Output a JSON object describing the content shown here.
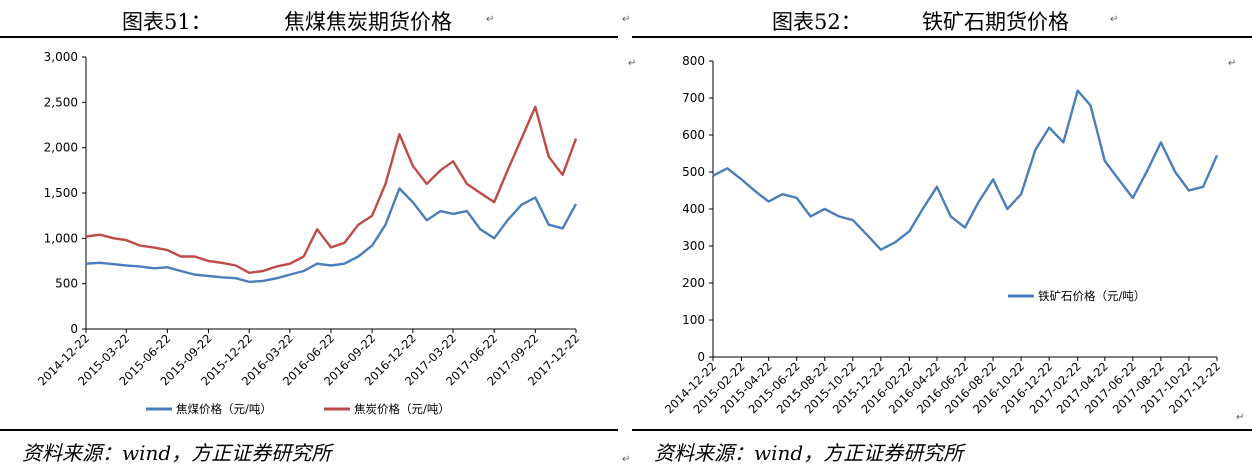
{
  "charts": [
    {
      "fig_no": "图表51：",
      "title": "焦煤焦炭期货价格",
      "source": "资料来源：wind，方正证券研究所",
      "mark": "↵"
    },
    {
      "fig_no": "图表52：",
      "title": "铁矿石期货价格",
      "source": "资料来源：wind，方正证券研究所",
      "mark": "↵"
    }
  ],
  "chart_data": [
    {
      "type": "line",
      "title": "焦煤焦炭期货价格",
      "x_tick_labels": [
        "2014-12-22",
        "2015-03-22",
        "2015-06-22",
        "2015-09-22",
        "2015-12-22",
        "2016-03-22",
        "2016-06-22",
        "2016-09-22",
        "2016-12-22",
        "2017-03-22",
        "2017-06-22",
        "2017-09-22",
        "2017-12-22"
      ],
      "x_range": [
        "2014-12-22",
        "2017-12-22"
      ],
      "y_ticks": [
        0,
        500,
        1000,
        1500,
        2000,
        2500,
        3000
      ],
      "y_tick_labels": [
        "0",
        "500",
        "1,000",
        "1,500",
        "2,000",
        "2,500",
        "3,000"
      ],
      "ylim": [
        0,
        3000
      ],
      "legend_position": "bottom",
      "series": [
        {
          "name": "焦煤价格（元/吨）",
          "color": "#4a7ebb",
          "points": [
            [
              "2014-12-22",
              720
            ],
            [
              "2015-01-22",
              730
            ],
            [
              "2015-02-22",
              715
            ],
            [
              "2015-03-22",
              700
            ],
            [
              "2015-04-22",
              690
            ],
            [
              "2015-05-22",
              670
            ],
            [
              "2015-06-22",
              680
            ],
            [
              "2015-07-22",
              640
            ],
            [
              "2015-08-22",
              600
            ],
            [
              "2015-09-22",
              585
            ],
            [
              "2015-10-22",
              570
            ],
            [
              "2015-11-22",
              560
            ],
            [
              "2015-12-22",
              520
            ],
            [
              "2016-01-22",
              530
            ],
            [
              "2016-02-22",
              560
            ],
            [
              "2016-03-22",
              600
            ],
            [
              "2016-04-22",
              640
            ],
            [
              "2016-05-22",
              720
            ],
            [
              "2016-06-22",
              700
            ],
            [
              "2016-07-22",
              720
            ],
            [
              "2016-08-22",
              800
            ],
            [
              "2016-09-22",
              920
            ],
            [
              "2016-10-22",
              1150
            ],
            [
              "2016-11-22",
              1550
            ],
            [
              "2016-12-22",
              1400
            ],
            [
              "2017-01-22",
              1200
            ],
            [
              "2017-02-22",
              1300
            ],
            [
              "2017-03-22",
              1270
            ],
            [
              "2017-04-22",
              1300
            ],
            [
              "2017-05-22",
              1100
            ],
            [
              "2017-06-22",
              1000
            ],
            [
              "2017-07-22",
              1200
            ],
            [
              "2017-08-22",
              1370
            ],
            [
              "2017-09-22",
              1450
            ],
            [
              "2017-10-22",
              1150
            ],
            [
              "2017-11-22",
              1110
            ],
            [
              "2017-12-22",
              1380
            ]
          ]
        },
        {
          "name": "焦炭价格（元/吨）",
          "color": "#be4b48",
          "points": [
            [
              "2014-12-22",
              1020
            ],
            [
              "2015-01-22",
              1040
            ],
            [
              "2015-02-22",
              1000
            ],
            [
              "2015-03-22",
              980
            ],
            [
              "2015-04-22",
              920
            ],
            [
              "2015-05-22",
              900
            ],
            [
              "2015-06-22",
              870
            ],
            [
              "2015-07-22",
              800
            ],
            [
              "2015-08-22",
              800
            ],
            [
              "2015-09-22",
              750
            ],
            [
              "2015-10-22",
              730
            ],
            [
              "2015-11-22",
              700
            ],
            [
              "2015-12-22",
              620
            ],
            [
              "2016-01-22",
              640
            ],
            [
              "2016-02-22",
              690
            ],
            [
              "2016-03-22",
              720
            ],
            [
              "2016-04-22",
              800
            ],
            [
              "2016-05-22",
              1100
            ],
            [
              "2016-06-22",
              900
            ],
            [
              "2016-07-22",
              950
            ],
            [
              "2016-08-22",
              1150
            ],
            [
              "2016-09-22",
              1250
            ],
            [
              "2016-10-22",
              1600
            ],
            [
              "2016-11-22",
              2150
            ],
            [
              "2016-12-22",
              1800
            ],
            [
              "2017-01-22",
              1600
            ],
            [
              "2017-02-22",
              1750
            ],
            [
              "2017-03-22",
              1850
            ],
            [
              "2017-04-22",
              1600
            ],
            [
              "2017-05-22",
              1500
            ],
            [
              "2017-06-22",
              1400
            ],
            [
              "2017-07-22",
              1750
            ],
            [
              "2017-08-22",
              2100
            ],
            [
              "2017-09-22",
              2450
            ],
            [
              "2017-10-22",
              1900
            ],
            [
              "2017-11-22",
              1700
            ],
            [
              "2017-12-22",
              2100
            ]
          ]
        }
      ]
    },
    {
      "type": "line",
      "title": "铁矿石期货价格",
      "x_tick_labels": [
        "2014-12-22",
        "2015-02-22",
        "2015-04-22",
        "2015-06-22",
        "2015-08-22",
        "2015-10-22",
        "2015-12-22",
        "2016-02-22",
        "2016-04-22",
        "2016-06-22",
        "2016-08-22",
        "2016-10-22",
        "2016-12-22",
        "2017-02-22",
        "2017-04-22",
        "2017-06-22",
        "2017-08-22",
        "2017-10-22",
        "2017-12-22"
      ],
      "x_range": [
        "2014-12-22",
        "2017-12-22"
      ],
      "y_ticks": [
        0,
        100,
        200,
        300,
        400,
        500,
        600,
        700,
        800
      ],
      "y_tick_labels": [
        "0",
        "100",
        "200",
        "300",
        "400",
        "500",
        "600",
        "700",
        "800"
      ],
      "ylim": [
        0,
        800
      ],
      "legend_position": "right",
      "series": [
        {
          "name": "铁矿石价格（元/吨）",
          "color": "#4a7ebb",
          "points": [
            [
              "2014-12-22",
              490
            ],
            [
              "2015-01-22",
              510
            ],
            [
              "2015-02-22",
              480
            ],
            [
              "2015-03-22",
              450
            ],
            [
              "2015-04-22",
              420
            ],
            [
              "2015-05-22",
              440
            ],
            [
              "2015-06-22",
              430
            ],
            [
              "2015-07-22",
              380
            ],
            [
              "2015-08-22",
              400
            ],
            [
              "2015-09-22",
              380
            ],
            [
              "2015-10-22",
              370
            ],
            [
              "2015-11-22",
              330
            ],
            [
              "2015-12-22",
              290
            ],
            [
              "2016-01-22",
              310
            ],
            [
              "2016-02-22",
              340
            ],
            [
              "2016-03-22",
              400
            ],
            [
              "2016-04-22",
              460
            ],
            [
              "2016-05-22",
              380
            ],
            [
              "2016-06-22",
              350
            ],
            [
              "2016-07-22",
              420
            ],
            [
              "2016-08-22",
              480
            ],
            [
              "2016-09-22",
              400
            ],
            [
              "2016-10-22",
              440
            ],
            [
              "2016-11-22",
              560
            ],
            [
              "2016-12-22",
              620
            ],
            [
              "2017-01-22",
              580
            ],
            [
              "2017-02-22",
              720
            ],
            [
              "2017-03-22",
              680
            ],
            [
              "2017-04-22",
              530
            ],
            [
              "2017-05-22",
              480
            ],
            [
              "2017-06-22",
              430
            ],
            [
              "2017-07-22",
              500
            ],
            [
              "2017-08-22",
              580
            ],
            [
              "2017-09-22",
              500
            ],
            [
              "2017-10-22",
              450
            ],
            [
              "2017-11-22",
              460
            ],
            [
              "2017-12-22",
              545
            ]
          ]
        }
      ]
    }
  ]
}
